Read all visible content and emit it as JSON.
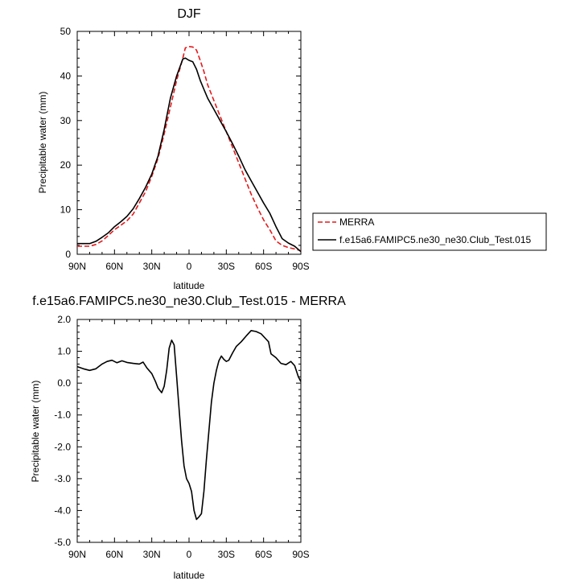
{
  "chart_data": [
    {
      "type": "line",
      "title": "DJF",
      "xlabel": "latitude",
      "ylabel": "Precipitable water (mm)",
      "xlim": [
        90,
        -90
      ],
      "ylim": [
        0,
        50
      ],
      "x_ticks": [
        90,
        60,
        30,
        0,
        -30,
        -60,
        -90
      ],
      "x_tick_labels": [
        "90N",
        "60N",
        "30N",
        "0",
        "30S",
        "60S",
        "90S"
      ],
      "y_ticks": [
        0,
        10,
        20,
        30,
        40,
        50
      ],
      "y_tick_labels": [
        "0",
        "10",
        "20",
        "30",
        "40",
        "50"
      ],
      "legend_position": "right",
      "series": [
        {
          "name": "MERRA",
          "color": "#e41a1c",
          "dash": "dashed",
          "x": [
            90,
            80,
            75,
            70,
            65,
            60,
            55,
            50,
            45,
            40,
            35,
            30,
            25,
            20,
            15,
            10,
            5,
            3,
            0,
            -3,
            -6,
            -9,
            -12,
            -15,
            -20,
            -25,
            -30,
            -35,
            -40,
            -45,
            -50,
            -55,
            -60,
            -65,
            -70,
            -75,
            -80,
            -85,
            -90
          ],
          "y": [
            1.8,
            1.8,
            2.2,
            3.0,
            4.2,
            5.5,
            6.5,
            7.5,
            9.0,
            11.5,
            14.0,
            17.5,
            21.5,
            27.0,
            33.0,
            39.0,
            44.0,
            46.3,
            46.6,
            46.5,
            45.8,
            43.5,
            41.0,
            38.0,
            34.5,
            31.0,
            27.5,
            24.0,
            20.5,
            17.0,
            13.5,
            10.5,
            7.7,
            5.5,
            3.0,
            2.0,
            1.5,
            1.2,
            0.8
          ]
        },
        {
          "name": "f.e15a6.FAMIPC5.ne30_ne30.Club_Test.015",
          "color": "#000000",
          "dash": "solid",
          "x": [
            90,
            80,
            75,
            70,
            65,
            60,
            55,
            50,
            45,
            40,
            35,
            30,
            25,
            20,
            15,
            10,
            5,
            3,
            0,
            -3,
            -6,
            -9,
            -12,
            -15,
            -20,
            -25,
            -30,
            -35,
            -40,
            -45,
            -50,
            -55,
            -60,
            -65,
            -70,
            -75,
            -80,
            -85,
            -90
          ],
          "y": [
            2.4,
            2.4,
            2.9,
            3.8,
            4.8,
            6.2,
            7.3,
            8.5,
            10.2,
            12.5,
            15.0,
            18.0,
            22.0,
            28.0,
            35.0,
            40.0,
            43.8,
            44.0,
            43.5,
            43.2,
            41.5,
            39.0,
            37.0,
            35.0,
            32.5,
            30.0,
            27.5,
            24.8,
            22.0,
            19.0,
            16.5,
            14.0,
            11.5,
            9.2,
            6.2,
            3.5,
            2.5,
            1.8,
            0.6
          ]
        }
      ]
    },
    {
      "type": "line",
      "title": "f.e15a6.FAMIPC5.ne30_ne30.Club_Test.015 - MERRA",
      "xlabel": "latitude",
      "ylabel": "Precipitable water (mm)",
      "xlim": [
        90,
        -90
      ],
      "ylim": [
        -5,
        2
      ],
      "x_ticks": [
        90,
        60,
        30,
        0,
        -30,
        -60,
        -90
      ],
      "x_tick_labels": [
        "90N",
        "60N",
        "30N",
        "0",
        "30S",
        "60S",
        "90S"
      ],
      "y_ticks": [
        2,
        1,
        0,
        -1,
        -2,
        -3,
        -4,
        -5
      ],
      "y_tick_labels": [
        "2.0",
        "1.0",
        "0.0",
        "-1.0",
        "-2.0",
        "-3.0",
        "-4.0",
        "-5.0"
      ],
      "series": [
        {
          "color": "#000000",
          "dash": "solid",
          "x": [
            90,
            85,
            80,
            75,
            70,
            66,
            62,
            58,
            54,
            50,
            45,
            40,
            37,
            34,
            30,
            27,
            25,
            22,
            20,
            18,
            16,
            14,
            12,
            10,
            8,
            6,
            4,
            2,
            0,
            -2,
            -4,
            -6,
            -8,
            -10,
            -12,
            -14,
            -16,
            -18,
            -20,
            -22,
            -24,
            -26,
            -28,
            -30,
            -32,
            -35,
            -38,
            -42,
            -46,
            -50,
            -54,
            -58,
            -62,
            -64,
            -66,
            -70,
            -74,
            -78,
            -82,
            -85,
            -88,
            -90
          ],
          "y": [
            0.52,
            0.45,
            0.4,
            0.45,
            0.6,
            0.68,
            0.72,
            0.64,
            0.7,
            0.65,
            0.62,
            0.6,
            0.66,
            0.48,
            0.3,
            0.05,
            -0.15,
            -0.3,
            -0.1,
            0.4,
            1.1,
            1.35,
            1.2,
            0.2,
            -0.8,
            -1.8,
            -2.6,
            -3.0,
            -3.15,
            -3.4,
            -4.0,
            -4.28,
            -4.2,
            -4.1,
            -3.4,
            -2.4,
            -1.5,
            -0.6,
            0.0,
            0.4,
            0.7,
            0.85,
            0.75,
            0.68,
            0.72,
            0.95,
            1.15,
            1.3,
            1.48,
            1.65,
            1.62,
            1.55,
            1.38,
            1.3,
            0.92,
            0.8,
            0.62,
            0.58,
            0.68,
            0.55,
            0.2,
            0.05
          ]
        }
      ]
    }
  ]
}
